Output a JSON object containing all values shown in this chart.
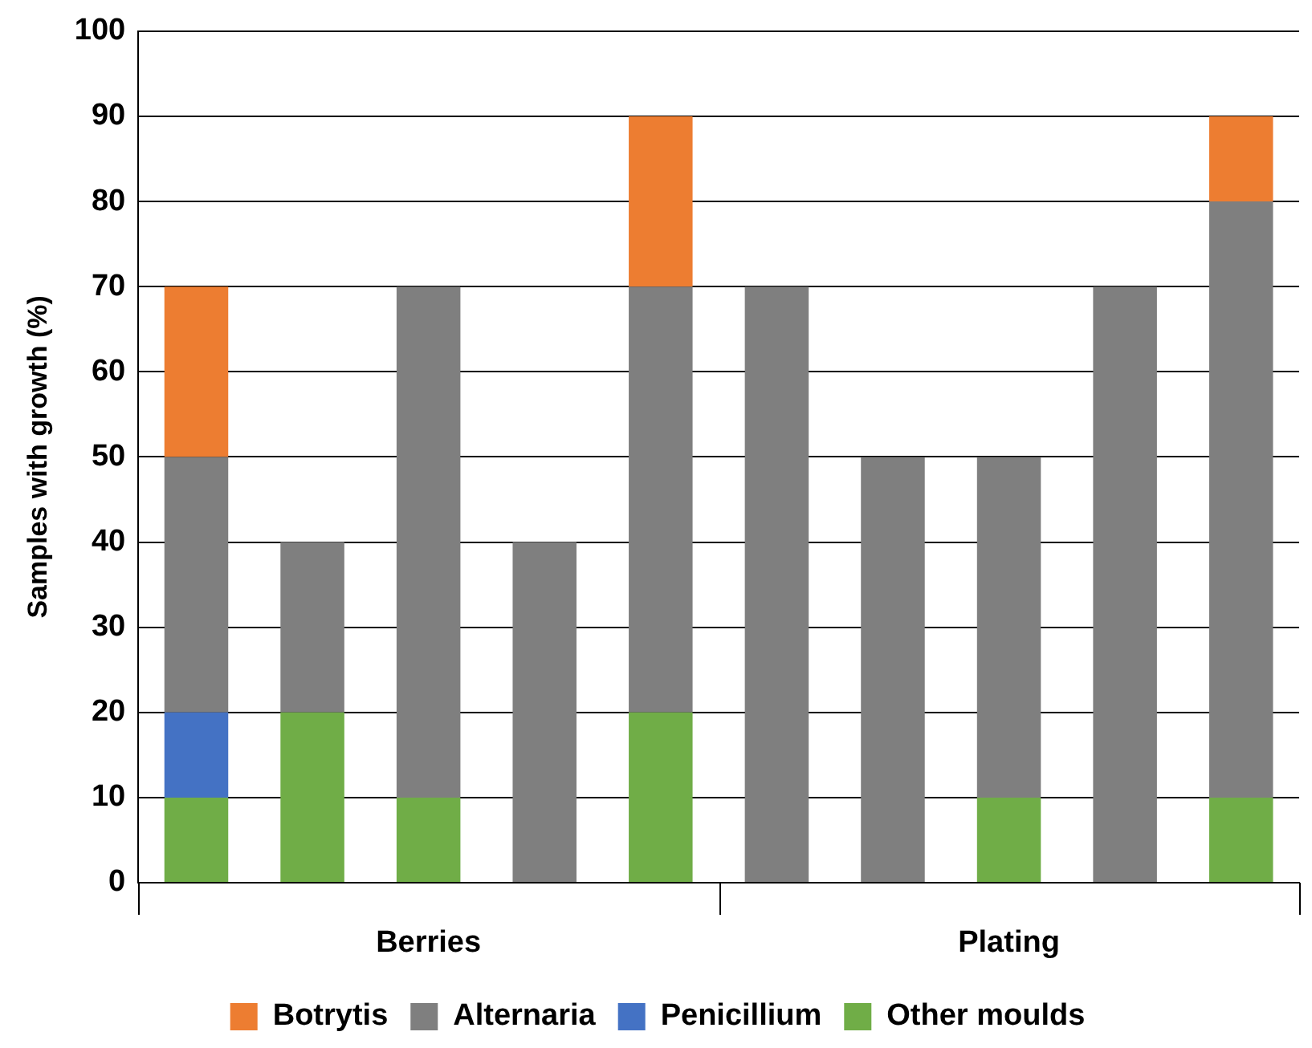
{
  "chart_data": {
    "type": "bar",
    "stacked": true,
    "ylabel": "Samples with growth (%)",
    "categories": [
      null,
      null,
      null,
      null,
      null,
      null,
      null,
      null,
      null,
      null
    ],
    "series": [
      {
        "name": "Other moulds",
        "color": "#70ad47",
        "values": [
          10,
          20,
          10,
          0,
          20,
          0,
          0,
          10,
          0,
          10
        ]
      },
      {
        "name": "Penicillium",
        "color": "#4472c4",
        "values": [
          10,
          0,
          0,
          0,
          0,
          0,
          0,
          0,
          0,
          0
        ]
      },
      {
        "name": "Alternaria",
        "color": "#7f7f7f",
        "values": [
          30,
          20,
          60,
          40,
          50,
          70,
          50,
          40,
          70,
          70
        ]
      },
      {
        "name": "Botrytis",
        "color": "#ed7d31",
        "values": [
          20,
          0,
          0,
          0,
          20,
          0,
          0,
          0,
          0,
          10
        ]
      }
    ],
    "ylim": [
      0,
      100
    ],
    "yticks": [
      0,
      10,
      20,
      30,
      40,
      50,
      60,
      70,
      80,
      90,
      100
    ],
    "grid": "y",
    "legend": "bottom",
    "annotations": [
      "Berries",
      "Plating"
    ]
  }
}
